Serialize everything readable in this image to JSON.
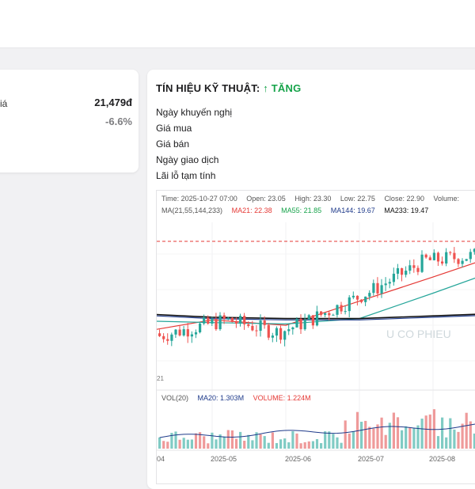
{
  "colors": {
    "accent_up": "#16a34a",
    "candle_up": "#26a69a",
    "candle_down": "#ef5350",
    "ma21": "#e53935",
    "ma55": "#26a69a",
    "ma144": "#1e3a8a",
    "ma233": "#111111",
    "vol_ma": "#1e3a8a"
  },
  "summary_card": {
    "label_partial": "iá",
    "price": "21,479đ",
    "change": "-6.6%"
  },
  "signal": {
    "title": "TÍN HIỆU KỸ THUẬT:",
    "value": "↑ TĂNG"
  },
  "info": {
    "recommend_date": "Ngày khuyến nghị",
    "buy_price": "Giá mua",
    "sell_price": "Giá bán",
    "trade_date": "Ngày giao dịch",
    "pnl": "Lãi lỗ tạm tính"
  },
  "chart": {
    "ohlc": {
      "time": "Time: 2025-10-27 07:00",
      "open": "Open: 23.05",
      "high": "High: 23.30",
      "low": "Low: 22.75",
      "close": "Close: 22.90",
      "volume": "Volume:"
    },
    "ma": {
      "label": "MA(21,55,144,233)",
      "ma21": "MA21: 22.38",
      "ma55": "MA55: 21.85",
      "ma144": "MA144: 19.67",
      "ma233": "MA233: 19.47"
    },
    "vol": {
      "label": "VOL(20)",
      "ma20": "MA20: 1.303M",
      "volume": "VOLUME: 1.224M"
    },
    "watermark": "U CO PHIEU",
    "price_axis_fragment": "21",
    "x_axis": [
      "04",
      "2025-05",
      "2025-06",
      "2025-07",
      "2025-08"
    ]
  },
  "chart_data": {
    "type": "line",
    "title": "",
    "x": [
      "04",
      "2025-05",
      "2025-06",
      "2025-07",
      "2025-08"
    ],
    "series": [
      {
        "name": "MA21",
        "values": [
          18.3,
          19.0,
          18.6,
          20.4,
          22.2
        ]
      },
      {
        "name": "MA55",
        "values": [
          18.9,
          18.8,
          18.7,
          19.1,
          21.0
        ]
      },
      {
        "name": "MA144",
        "values": [
          19.3,
          19.1,
          19.0,
          19.0,
          19.2
        ]
      },
      {
        "name": "MA233",
        "values": [
          19.4,
          19.2,
          19.1,
          19.1,
          19.3
        ]
      }
    ],
    "grid": true,
    "legend": "top-left"
  }
}
